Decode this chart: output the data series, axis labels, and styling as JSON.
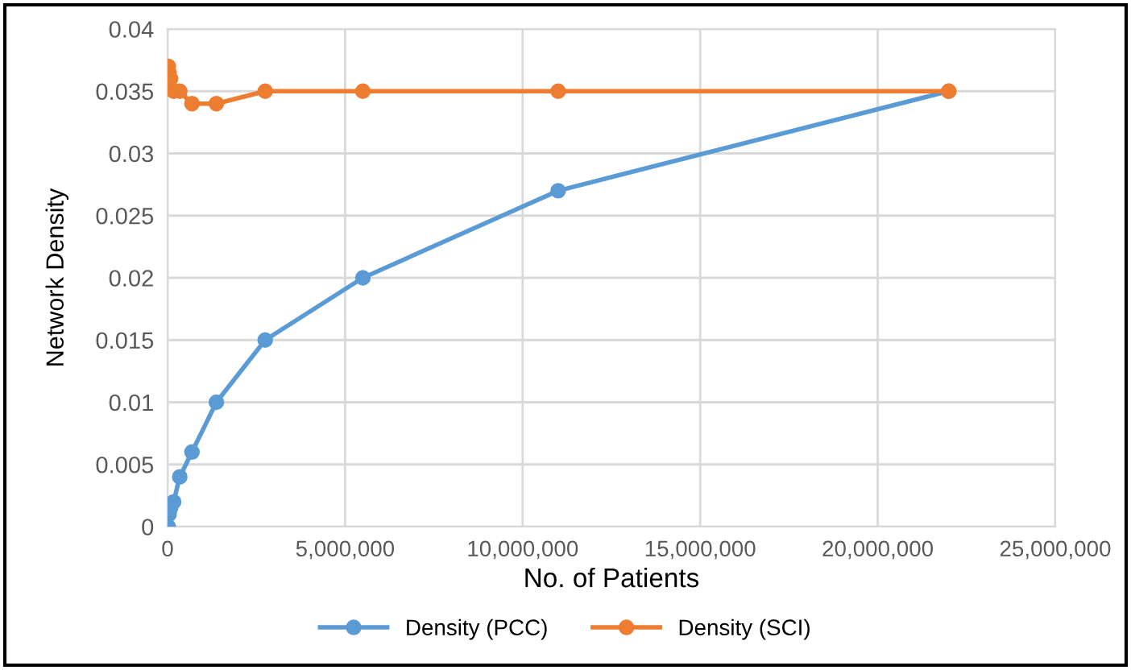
{
  "chart_data": {
    "type": "line",
    "xlabel": "No. of Patients",
    "ylabel": "Network Density",
    "xlim": [
      0,
      25000000
    ],
    "ylim": [
      0,
      0.04
    ],
    "xticks": [
      {
        "value": 0,
        "label": "0"
      },
      {
        "value": 5000000,
        "label": "5,000,000"
      },
      {
        "value": 10000000,
        "label": "10,000,000"
      },
      {
        "value": 15000000,
        "label": "15,000,000"
      },
      {
        "value": 20000000,
        "label": "20,000,000"
      },
      {
        "value": 25000000,
        "label": "25,000,000"
      }
    ],
    "yticks": [
      0,
      0.005,
      0.01,
      0.015,
      0.02,
      0.025,
      0.03,
      0.035,
      0.04
    ],
    "grid": true,
    "legend": "bottom",
    "marker": "circle",
    "line_style": "solid",
    "series": [
      {
        "name": "Density (PCC)",
        "color": "#5b9bd5",
        "x": [
          21484,
          42969,
          85938,
          171875,
          343750,
          687500,
          1375000,
          2750000,
          5500000,
          11000000,
          22000000
        ],
        "values": [
          0,
          0.001,
          0.0015,
          0.002,
          0.004,
          0.006,
          0.01,
          0.015,
          0.02,
          0.027,
          0.035
        ]
      },
      {
        "name": "Density (SCI)",
        "color": "#ed7d31",
        "x": [
          21484,
          42969,
          85938,
          171875,
          343750,
          687500,
          1375000,
          2750000,
          5500000,
          11000000,
          22000000
        ],
        "values": [
          0.037,
          0.0365,
          0.036,
          0.035,
          0.035,
          0.034,
          0.034,
          0.035,
          0.035,
          0.035,
          0.035
        ]
      }
    ]
  }
}
